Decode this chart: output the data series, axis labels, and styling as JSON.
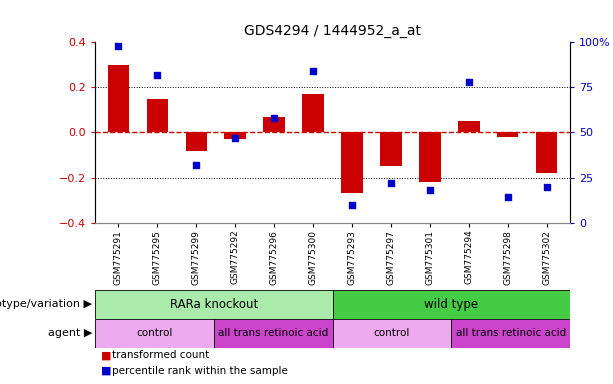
{
  "title": "GDS4294 / 1444952_a_at",
  "samples": [
    "GSM775291",
    "GSM775295",
    "GSM775299",
    "GSM775292",
    "GSM775296",
    "GSM775300",
    "GSM775293",
    "GSM775297",
    "GSM775301",
    "GSM775294",
    "GSM775298",
    "GSM775302"
  ],
  "bar_values": [
    0.3,
    0.15,
    -0.08,
    -0.03,
    0.07,
    0.17,
    -0.27,
    -0.15,
    -0.22,
    0.05,
    -0.02,
    -0.18
  ],
  "dot_values": [
    98,
    82,
    32,
    47,
    58,
    84,
    10,
    22,
    18,
    78,
    14,
    20
  ],
  "bar_color": "#cc0000",
  "dot_color": "#0000cc",
  "left_ylim": [
    -0.4,
    0.4
  ],
  "right_ylim": [
    0,
    100
  ],
  "left_yticks": [
    -0.4,
    -0.2,
    0.0,
    0.2,
    0.4
  ],
  "right_yticks": [
    0,
    25,
    50,
    75,
    100
  ],
  "right_yticklabels": [
    "0",
    "25",
    "50",
    "75",
    "100%"
  ],
  "hline_color": "#cc0000",
  "dotted_color": "#000000",
  "genotype_label": "genotype/variation",
  "agent_label": "agent",
  "genotype_blocks": [
    {
      "label": "RARa knockout",
      "start": 0,
      "end": 6,
      "color": "#aaeaaa"
    },
    {
      "label": "wild type",
      "start": 6,
      "end": 12,
      "color": "#44cc44"
    }
  ],
  "agent_blocks": [
    {
      "label": "control",
      "start": 0,
      "end": 3,
      "color": "#eeaaee"
    },
    {
      "label": "all trans retinoic acid",
      "start": 3,
      "end": 6,
      "color": "#cc44cc"
    },
    {
      "label": "control",
      "start": 6,
      "end": 9,
      "color": "#eeaaee"
    },
    {
      "label": "all trans retinoic acid",
      "start": 9,
      "end": 12,
      "color": "#cc44cc"
    }
  ],
  "legend_bar_label": "transformed count",
  "legend_dot_label": "percentile rank within the sample",
  "tick_label_color": "#cc0000",
  "right_tick_label_color": "#0000cc",
  "bg_color": "#ffffff",
  "grid_color": "#cccccc"
}
